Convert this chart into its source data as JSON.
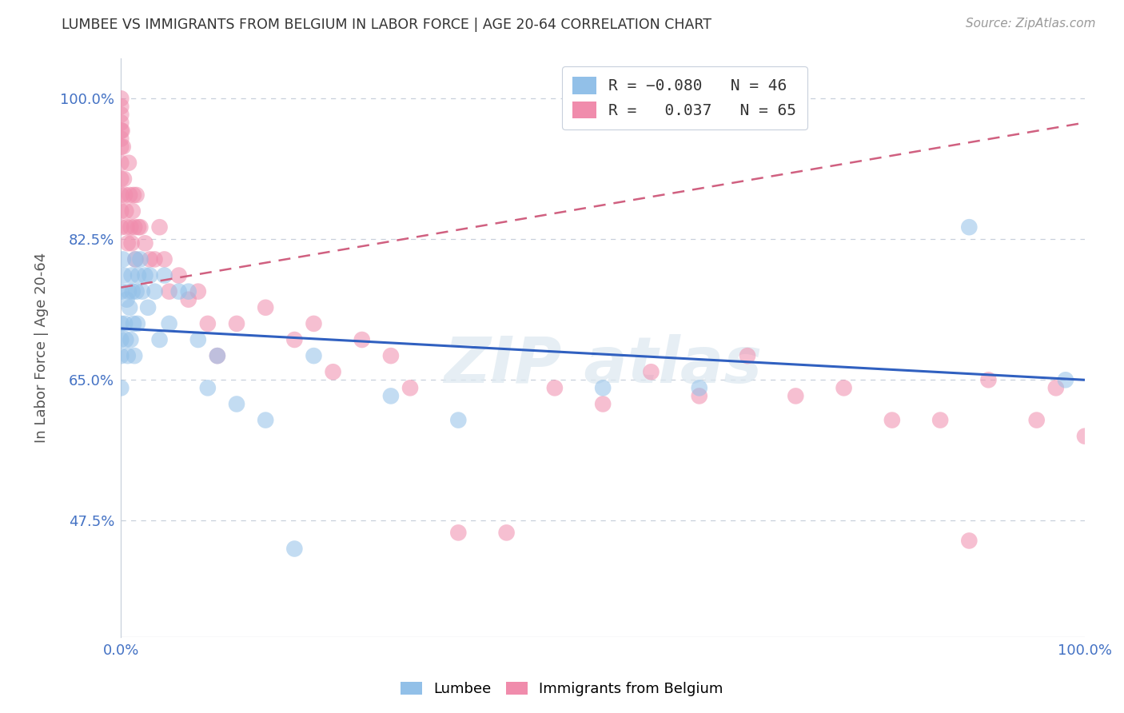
{
  "title": "LUMBEE VS IMMIGRANTS FROM BELGIUM IN LABOR FORCE | AGE 20-64 CORRELATION CHART",
  "source": "Source: ZipAtlas.com",
  "ylabel": "In Labor Force | Age 20-64",
  "xlim": [
    0.0,
    1.0
  ],
  "ylim": [
    0.33,
    1.05
  ],
  "yticks": [
    0.475,
    0.65,
    0.825,
    1.0
  ],
  "ytick_labels": [
    "47.5%",
    "65.0%",
    "82.5%",
    "100.0%"
  ],
  "xtick_positions": [
    0.0,
    0.1,
    0.2,
    0.3,
    0.4,
    0.5,
    0.6,
    0.7,
    0.8,
    0.9,
    1.0
  ],
  "xtick_labels": [
    "0.0%",
    "",
    "",
    "",
    "",
    "",
    "",
    "",
    "",
    "",
    "100.0%"
  ],
  "lumbee_color": "#92c0e8",
  "belgium_color": "#f08cac",
  "lumbee_line_color": "#3060c0",
  "belgium_line_color": "#d06080",
  "lumbee_x": [
    0.0,
    0.0,
    0.0,
    0.0,
    0.0,
    0.002,
    0.003,
    0.004,
    0.005,
    0.006,
    0.007,
    0.008,
    0.009,
    0.01,
    0.011,
    0.012,
    0.013,
    0.014,
    0.015,
    0.016,
    0.017,
    0.018,
    0.02,
    0.022,
    0.025,
    0.028,
    0.03,
    0.035,
    0.04,
    0.045,
    0.05,
    0.06,
    0.07,
    0.08,
    0.09,
    0.1,
    0.12,
    0.15,
    0.18,
    0.2,
    0.28,
    0.35,
    0.5,
    0.6,
    0.88,
    0.98
  ],
  "lumbee_y": [
    0.76,
    0.72,
    0.7,
    0.68,
    0.64,
    0.8,
    0.78,
    0.72,
    0.7,
    0.75,
    0.68,
    0.76,
    0.74,
    0.7,
    0.78,
    0.76,
    0.72,
    0.68,
    0.8,
    0.76,
    0.72,
    0.78,
    0.8,
    0.76,
    0.78,
    0.74,
    0.78,
    0.76,
    0.7,
    0.78,
    0.72,
    0.76,
    0.76,
    0.7,
    0.64,
    0.68,
    0.62,
    0.6,
    0.44,
    0.68,
    0.63,
    0.6,
    0.64,
    0.64,
    0.84,
    0.65
  ],
  "belgium_x": [
    0.0,
    0.0,
    0.0,
    0.0,
    0.0,
    0.0,
    0.0,
    0.0,
    0.0,
    0.0,
    0.0,
    0.0,
    0.001,
    0.002,
    0.003,
    0.004,
    0.005,
    0.006,
    0.007,
    0.008,
    0.009,
    0.01,
    0.011,
    0.012,
    0.013,
    0.014,
    0.015,
    0.016,
    0.018,
    0.02,
    0.025,
    0.03,
    0.035,
    0.04,
    0.045,
    0.05,
    0.06,
    0.07,
    0.08,
    0.09,
    0.1,
    0.12,
    0.15,
    0.18,
    0.2,
    0.22,
    0.25,
    0.28,
    0.3,
    0.35,
    0.4,
    0.45,
    0.5,
    0.55,
    0.6,
    0.65,
    0.7,
    0.75,
    0.8,
    0.85,
    0.88,
    0.9,
    0.95,
    0.97,
    1.0
  ],
  "belgium_y": [
    1.0,
    0.99,
    0.98,
    0.97,
    0.96,
    0.95,
    0.94,
    0.92,
    0.9,
    0.88,
    0.86,
    0.84,
    0.96,
    0.94,
    0.9,
    0.88,
    0.86,
    0.84,
    0.82,
    0.92,
    0.88,
    0.84,
    0.82,
    0.86,
    0.88,
    0.84,
    0.8,
    0.88,
    0.84,
    0.84,
    0.82,
    0.8,
    0.8,
    0.84,
    0.8,
    0.76,
    0.78,
    0.75,
    0.76,
    0.72,
    0.68,
    0.72,
    0.74,
    0.7,
    0.72,
    0.66,
    0.7,
    0.68,
    0.64,
    0.46,
    0.46,
    0.64,
    0.62,
    0.66,
    0.63,
    0.68,
    0.63,
    0.64,
    0.6,
    0.6,
    0.45,
    0.65,
    0.6,
    0.64,
    0.58
  ],
  "lumbee_line_x0": 0.0,
  "lumbee_line_y0": 0.714,
  "lumbee_line_x1": 1.0,
  "lumbee_line_y1": 0.65,
  "belgium_line_x0": 0.0,
  "belgium_line_y0": 0.765,
  "belgium_line_x1": 1.0,
  "belgium_line_y1": 0.97
}
